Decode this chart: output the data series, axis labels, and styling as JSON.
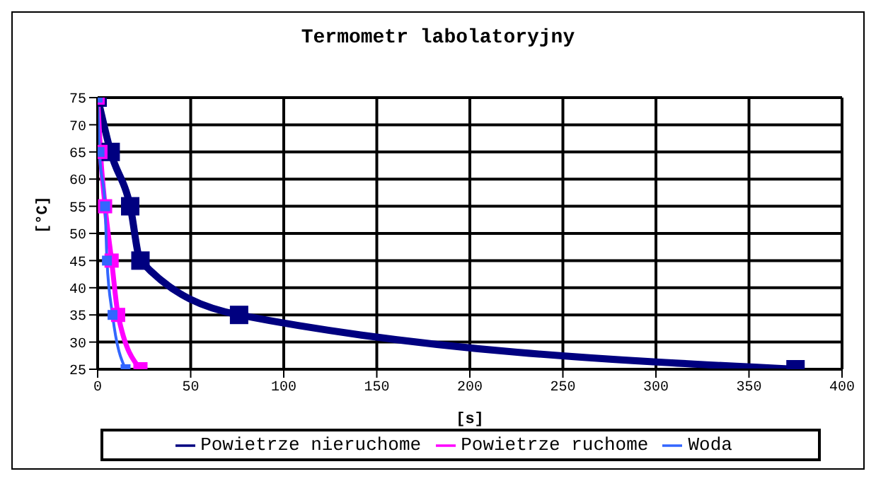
{
  "chart_data": {
    "type": "line",
    "title": "Termometr labolatoryjny",
    "xlabel": "[s]",
    "ylabel": "[°C]",
    "xlim": [
      0,
      400
    ],
    "xticks": [
      0,
      50,
      100,
      150,
      200,
      250,
      300,
      350,
      400
    ],
    "ylim": [
      25,
      75
    ],
    "yticks": [
      25,
      30,
      35,
      40,
      45,
      50,
      55,
      60,
      65,
      70,
      75
    ],
    "grid": true,
    "legend": "bottom",
    "marker": "square",
    "line_style": "solid",
    "series": [
      {
        "name": "Powietrze nieruchome",
        "color": "#000080",
        "x": [
          0,
          7,
          17.5,
          23,
          76,
          375
        ],
        "values": [
          75,
          65,
          55,
          45,
          35,
          25
        ]
      },
      {
        "name": "Powietrze ruchome",
        "color": "#ff00ff",
        "x": [
          0,
          1.5,
          4,
          7.5,
          11,
          23
        ],
        "values": [
          75,
          65,
          55,
          45,
          35,
          25
        ]
      },
      {
        "name": "Woda",
        "color": "#3366ff",
        "x": [
          0,
          1,
          4,
          5,
          8,
          15
        ],
        "values": [
          75,
          65,
          55,
          45,
          35,
          25
        ]
      }
    ]
  }
}
